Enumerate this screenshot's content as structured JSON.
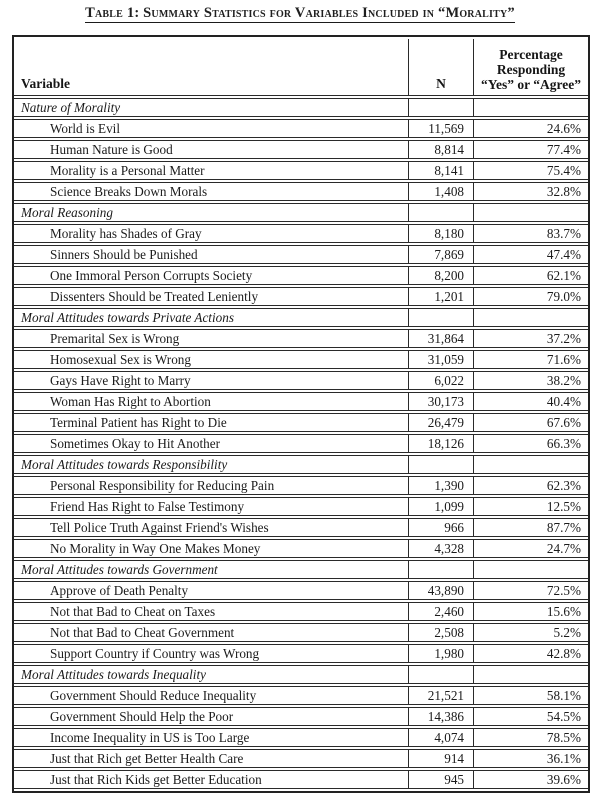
{
  "page": {
    "title": "Table 1: Summary Statistics for Variables Included in “Morality”"
  },
  "table": {
    "header": {
      "variable": "Variable",
      "n": "N",
      "pct_lines": [
        "Percentage",
        "Responding",
        "“Yes” or “Agree”"
      ]
    },
    "sections": [
      {
        "title": "Nature of Morality",
        "rows": [
          {
            "label": "World is Evil",
            "n": "11,569",
            "pct": "24.6%"
          },
          {
            "label": "Human Nature is Good",
            "n": "8,814",
            "pct": "77.4%"
          },
          {
            "label": "Morality is a Personal Matter",
            "n": "8,141",
            "pct": "75.4%"
          },
          {
            "label": "Science Breaks Down Morals",
            "n": "1,408",
            "pct": "32.8%"
          }
        ]
      },
      {
        "title": "Moral Reasoning",
        "rows": [
          {
            "label": "Morality has Shades of Gray",
            "n": "8,180",
            "pct": "83.7%"
          },
          {
            "label": "Sinners Should be Punished",
            "n": "7,869",
            "pct": "47.4%"
          },
          {
            "label": "One Immoral Person Corrupts Society",
            "n": "8,200",
            "pct": "62.1%"
          },
          {
            "label": "Dissenters Should be Treated Leniently",
            "n": "1,201",
            "pct": "79.0%"
          }
        ]
      },
      {
        "title": "Moral Attitudes towards Private Actions",
        "rows": [
          {
            "label": "Premarital Sex is Wrong",
            "n": "31,864",
            "pct": "37.2%"
          },
          {
            "label": "Homosexual Sex is Wrong",
            "n": "31,059",
            "pct": "71.6%"
          },
          {
            "label": "Gays Have Right to Marry",
            "n": "6,022",
            "pct": "38.2%"
          },
          {
            "label": "Woman Has Right to Abortion",
            "n": "30,173",
            "pct": "40.4%"
          },
          {
            "label": "Terminal Patient has Right to Die",
            "n": "26,479",
            "pct": "67.6%"
          },
          {
            "label": "Sometimes Okay to Hit Another",
            "n": "18,126",
            "pct": "66.3%"
          }
        ]
      },
      {
        "title": "Moral Attitudes towards Responsibility",
        "rows": [
          {
            "label": "Personal Responsibility for Reducing Pain",
            "n": "1,390",
            "pct": "62.3%"
          },
          {
            "label": "Friend Has Right to False Testimony",
            "n": "1,099",
            "pct": "12.5%"
          },
          {
            "label": "Tell Police Truth Against Friend's Wishes",
            "n": "966",
            "pct": "87.7%"
          },
          {
            "label": "No Morality in Way One Makes Money",
            "n": "4,328",
            "pct": "24.7%"
          }
        ]
      },
      {
        "title": "Moral Attitudes towards Government",
        "rows": [
          {
            "label": "Approve of Death Penalty",
            "n": "43,890",
            "pct": "72.5%"
          },
          {
            "label": "Not that Bad to Cheat on Taxes",
            "n": "2,460",
            "pct": "15.6%"
          },
          {
            "label": "Not that Bad to Cheat Government",
            "n": "2,508",
            "pct": "5.2%"
          },
          {
            "label": "Support Country if Country was Wrong",
            "n": "1,980",
            "pct": "42.8%"
          }
        ]
      },
      {
        "title": "Moral Attitudes towards Inequality",
        "rows": [
          {
            "label": "Government Should Reduce Inequality",
            "n": "21,521",
            "pct": "58.1%"
          },
          {
            "label": "Government Should Help the Poor",
            "n": "14,386",
            "pct": "54.5%"
          },
          {
            "label": "Income Inequality in US is Too Large",
            "n": "4,074",
            "pct": "78.5%"
          },
          {
            "label": "Just that Rich get Better Health Care",
            "n": "914",
            "pct": "36.1%"
          },
          {
            "label": "Just that Rich Kids get Better Education",
            "n": "945",
            "pct": "39.6%"
          }
        ]
      }
    ]
  }
}
